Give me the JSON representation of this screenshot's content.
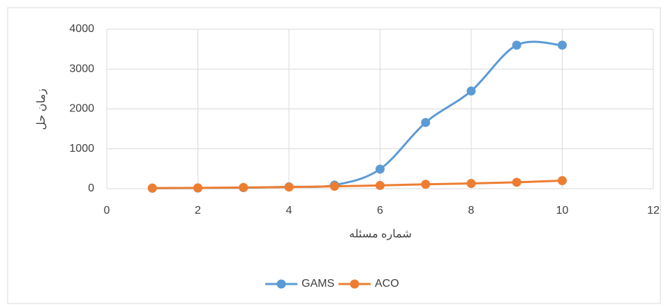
{
  "chart_data": {
    "type": "line",
    "x_label": "شماره مسئله",
    "y_label": "زمان حل",
    "x": [
      1,
      2,
      3,
      4,
      5,
      6,
      7,
      8,
      9,
      10
    ],
    "series": [
      {
        "name": "GAMS",
        "color": "#5b9bd5",
        "values": [
          10,
          15,
          25,
          45,
          90,
          490,
          1660,
          2450,
          3600,
          3600
        ]
      },
      {
        "name": "ACO",
        "color": "#ed7d31",
        "values": [
          15,
          20,
          30,
          40,
          60,
          80,
          110,
          130,
          160,
          200
        ]
      }
    ],
    "xlim": [
      0,
      12
    ],
    "xticks": [
      0,
      2,
      4,
      6,
      8,
      10,
      12
    ],
    "ylim": [
      0,
      4000
    ],
    "yticks": [
      0,
      1000,
      2000,
      3000,
      4000
    ],
    "grid": true,
    "smooth": true,
    "legend": "bottom"
  }
}
